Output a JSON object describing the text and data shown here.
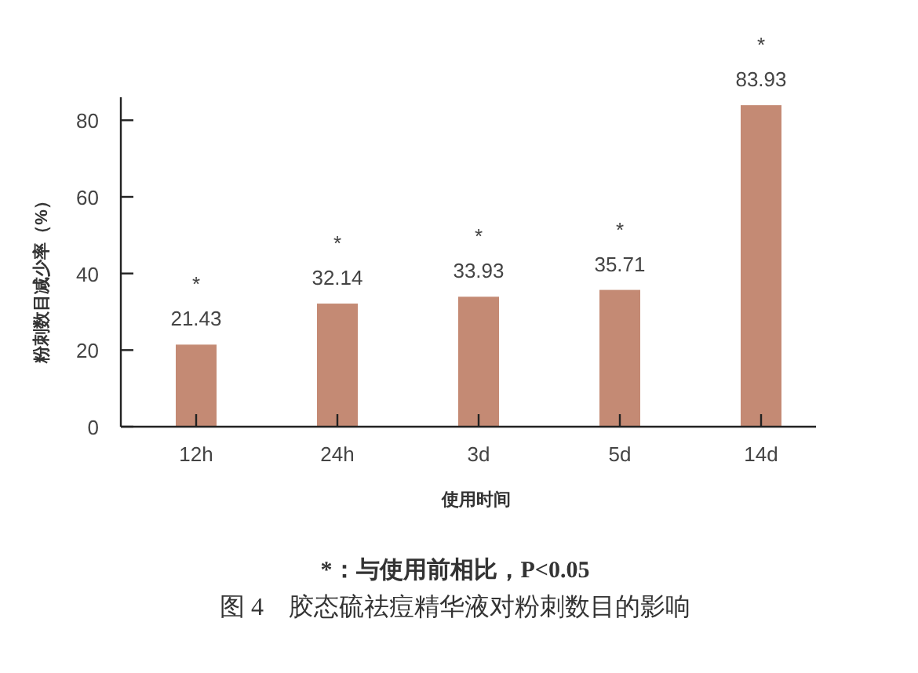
{
  "chart_data": {
    "type": "bar",
    "xlabel": "使用时间",
    "ylabel": "粉刺数目减少率（%）",
    "categories": [
      "12h",
      "24h",
      "3d",
      "5d",
      "14d"
    ],
    "values": [
      21.43,
      32.14,
      33.93,
      35.71,
      83.93
    ],
    "color": "#c48a74",
    "data_labels": true,
    "ylim": [
      0,
      86
    ],
    "yticks": [
      0,
      20,
      40,
      60,
      80
    ],
    "grid": false,
    "annotations": [
      {
        "text": "*",
        "x": "12h",
        "y": 21.43
      },
      {
        "text": "*",
        "x": "24h",
        "y": 32.14
      },
      {
        "text": "*",
        "x": "3d",
        "y": 33.93
      },
      {
        "text": "*",
        "x": "5d",
        "y": 35.71
      },
      {
        "text": "*",
        "x": "14d",
        "y": 83.93
      },
      "*：与使用前相比，P<0.05",
      "图 4　胶态硫祛痘精华液对粉刺数目的影响"
    ]
  }
}
